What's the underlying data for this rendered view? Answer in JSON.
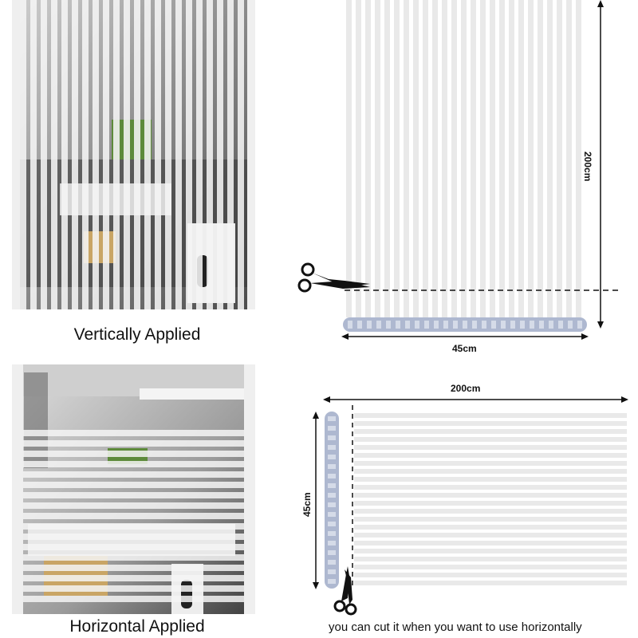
{
  "captions": {
    "vertical": "Vertically Applied",
    "horizontal": "Horizontal Applied"
  },
  "dimensions": {
    "vertical_height": "200cm",
    "vertical_width": "45cm",
    "horizontal_length": "200cm",
    "horizontal_width": "45cm"
  },
  "note": "you can cut it when you want to use horizontally",
  "colors": {
    "stripe": "#e9e9e9",
    "frost": "#f5f5f5",
    "roll": "#aeb8d0",
    "line": "#111111"
  },
  "icons": [
    "scissors-icon",
    "film-roll"
  ]
}
